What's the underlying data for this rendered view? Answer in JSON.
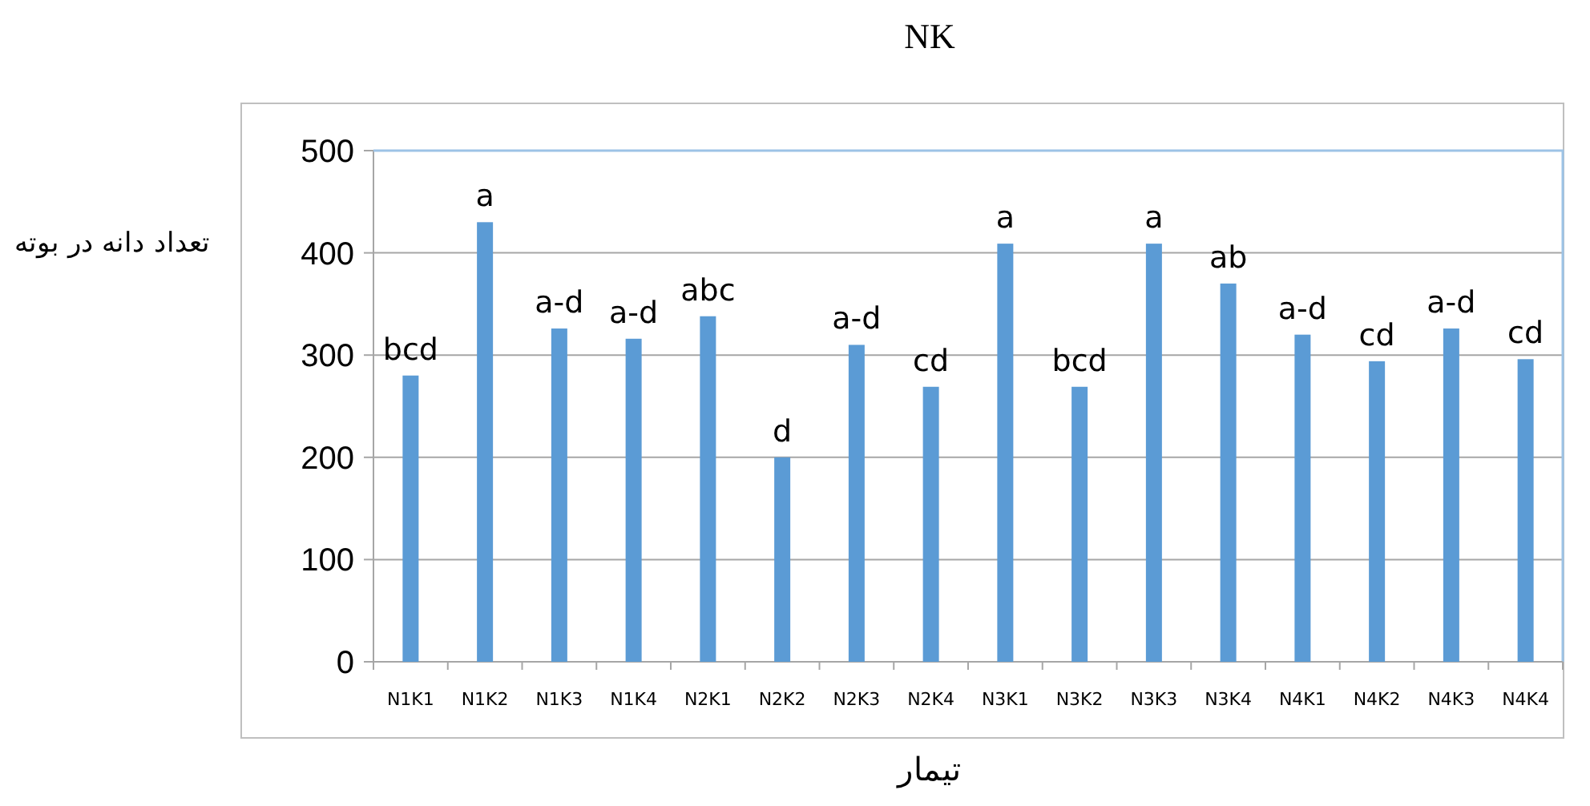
{
  "chart_data": {
    "type": "bar",
    "title": "NK",
    "xlabel": "تیمار",
    "ylabel": "تعداد دانه در بوته",
    "categories": [
      "N1K1",
      "N1K2",
      "N1K3",
      "N1K4",
      "N2K1",
      "N2K2",
      "N2K3",
      "N2K4",
      "N3K1",
      "N3K2",
      "N3K3",
      "N3K4",
      "N4K1",
      "N4K2",
      "N4K3",
      "N4K4"
    ],
    "values": [
      280,
      430,
      326,
      316,
      338,
      200,
      310,
      269,
      409,
      269,
      409,
      370,
      320,
      294,
      326,
      296
    ],
    "value_labels": [
      "bcd",
      "a",
      "a-d",
      "a-d",
      "abc",
      "d",
      "a-d",
      "cd",
      "a",
      "bcd",
      "a",
      "ab",
      "a-d",
      "cd",
      "a-d",
      "cd"
    ],
    "color": "#5b9bd5",
    "ylim": [
      0,
      500
    ],
    "yticks": [
      0,
      100,
      200,
      300,
      400,
      500
    ],
    "grid": "y"
  }
}
